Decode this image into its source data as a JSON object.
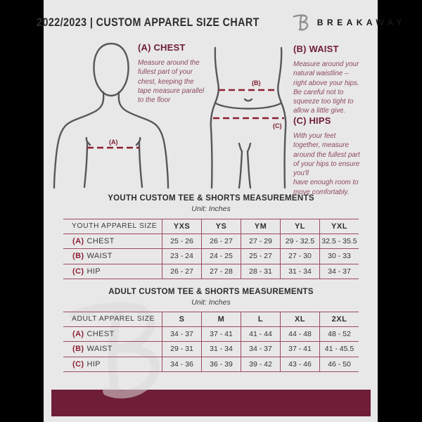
{
  "header": {
    "title": "2022/2023  |  CUSTOM APPAREL SIZE CHART",
    "brand": "BREAKAWAY"
  },
  "instructions": [
    {
      "heading": "(A) CHEST",
      "body": "Measure around the\nfullest part of your\nchest, keeping the\ntape measure parallel\nto the floor"
    },
    {
      "heading": "(B) WAIST",
      "body": "Measure around your\nnatural waistline –\nright above your hips.\nBe careful not to\nsqueeze too tight to\nallow a little give."
    },
    {
      "heading": "(C) HIPS",
      "body": "With your feet\ntogether, measure\naround the fullest part\nof your hips to ensure\nyou'll\nhave enough room to\nmove comfortably."
    }
  ],
  "diagram": {
    "chest_label": "(A)",
    "waist_label": "(B)",
    "hips_label": "(C)"
  },
  "youth_section": {
    "title": "YOUTH CUSTOM TEE & SHORTS MEASUREMENTS",
    "unit": "Unit: Inches",
    "table": {
      "header_label": "YOUTH APPAREL SIZE",
      "sizes": [
        "YXS",
        "YS",
        "YM",
        "YL",
        "YXL"
      ],
      "rows": [
        {
          "key": "(A)",
          "label": "CHEST",
          "values": [
            "25 - 26",
            "26 - 27",
            "27 - 29",
            "29 - 32.5",
            "32.5 - 35.5"
          ]
        },
        {
          "key": "(B)",
          "label": "WAIST",
          "values": [
            "23 - 24",
            "24 - 25",
            "25 - 27",
            "27 - 30",
            "30 - 33"
          ]
        },
        {
          "key": "(C)",
          "label": "HIP",
          "values": [
            "26 - 27",
            "27 - 28",
            "28 - 31",
            "31 - 34",
            "34 - 37"
          ]
        }
      ]
    }
  },
  "adult_section": {
    "title": "ADULT CUSTOM TEE & SHORTS MEASUREMENTS",
    "unit": "Unit: Inches",
    "table": {
      "header_label": "ADULT APPAREL SIZE",
      "sizes": [
        "S",
        "M",
        "L",
        "XL",
        "2XL"
      ],
      "rows": [
        {
          "key": "(A)",
          "label": "CHEST",
          "values": [
            "34 - 37",
            "37 - 41",
            "41 - 44",
            "44 - 48",
            "48 - 52"
          ]
        },
        {
          "key": "(B)",
          "label": "WAIST",
          "values": [
            "29 - 31",
            "31 - 34",
            "34 - 37",
            "37 - 41",
            "41 - 45.5"
          ]
        },
        {
          "key": "(C)",
          "label": "HIP",
          "values": [
            "34 - 36",
            "36 - 39",
            "39 - 42",
            "43 - 46",
            "46 - 50"
          ]
        }
      ]
    }
  },
  "colors": {
    "canvas": "#000000",
    "document_bg": "#e9e8e8",
    "accent_maroon": "#6f1e38",
    "line_red": "#8b1f30",
    "table_border": "#9a4a5e",
    "figure_gray": "#56575a"
  }
}
